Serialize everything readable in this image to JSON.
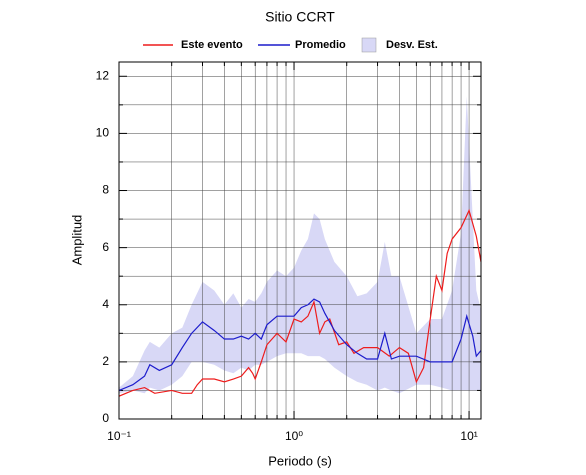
{
  "chart_data": {
    "type": "line",
    "title": "Sitio CCRT",
    "xlabel": "Periodo (s)",
    "ylabel": "Amplitud",
    "xscale": "log",
    "grid": true,
    "legend": "top",
    "xlim": [
      0.1,
      11.7
    ],
    "ylim": [
      0,
      12.5
    ],
    "xticks": [
      {
        "value": 0.1,
        "label": "10⁻¹"
      },
      {
        "value": 1,
        "label": "10⁰"
      },
      {
        "value": 10,
        "label": "10¹"
      }
    ],
    "xminor": [
      0.2,
      0.3,
      0.4,
      0.5,
      0.6,
      0.7,
      0.8,
      0.9,
      2,
      3,
      4,
      5,
      6,
      7,
      8,
      9
    ],
    "yticks": [
      0,
      2,
      4,
      6,
      8,
      10,
      12
    ],
    "yminor": [
      1,
      3,
      5,
      7,
      9,
      11
    ],
    "band": {
      "name": "Desv. Est.",
      "color": "#d8d8f6",
      "x": [
        0.1,
        0.12,
        0.14,
        0.15,
        0.17,
        0.2,
        0.23,
        0.26,
        0.3,
        0.35,
        0.4,
        0.45,
        0.5,
        0.55,
        0.6,
        0.65,
        0.7,
        0.8,
        0.9,
        1.0,
        1.1,
        1.2,
        1.3,
        1.4,
        1.5,
        1.7,
        2.0,
        2.3,
        2.6,
        3.0,
        3.3,
        3.6,
        4.0,
        5.0,
        6.0,
        7.0,
        8.0,
        9.0,
        9.7,
        10.5,
        11,
        11.7
      ],
      "upper": [
        1.1,
        1.5,
        2.4,
        2.7,
        2.5,
        3.0,
        3.2,
        4.0,
        4.8,
        4.5,
        4.0,
        4.4,
        3.9,
        4.2,
        4.1,
        4.4,
        4.8,
        5.2,
        5.0,
        5.3,
        5.9,
        6.3,
        7.2,
        7.0,
        6.3,
        5.5,
        5.0,
        4.3,
        4.4,
        4.8,
        6.2,
        5.0,
        5.0,
        3.0,
        3.5,
        3.5,
        4.5,
        6.5,
        11.3,
        7.0,
        4.5,
        3.8
      ],
      "lower": [
        0.9,
        1.0,
        0.9,
        1.1,
        1.0,
        1.2,
        1.5,
        2.0,
        2.0,
        1.9,
        1.7,
        1.6,
        1.8,
        1.7,
        1.9,
        1.9,
        2.0,
        2.2,
        2.3,
        2.3,
        2.3,
        2.2,
        2.2,
        2.2,
        2.1,
        1.8,
        1.5,
        1.3,
        1.2,
        1.0,
        1.1,
        1.0,
        0.9,
        1.2,
        1.2,
        1.1,
        1.0,
        1.0,
        1.0,
        1.0,
        1.0,
        1.0
      ]
    },
    "series": [
      {
        "name": "Este evento",
        "color": "#ee1c1c",
        "x": [
          0.1,
          0.12,
          0.14,
          0.16,
          0.2,
          0.23,
          0.26,
          0.28,
          0.3,
          0.35,
          0.4,
          0.45,
          0.5,
          0.55,
          0.58,
          0.6,
          0.65,
          0.7,
          0.8,
          0.9,
          1.0,
          1.1,
          1.2,
          1.3,
          1.4,
          1.5,
          1.6,
          1.8,
          2.0,
          2.2,
          2.5,
          3.0,
          3.5,
          4.0,
          4.5,
          5.0,
          5.5,
          6.0,
          6.5,
          7.0,
          7.5,
          8.0,
          9.0,
          10,
          11,
          11.7
        ],
        "values": [
          0.8,
          1.0,
          1.1,
          0.9,
          1.0,
          0.9,
          0.9,
          1.2,
          1.4,
          1.4,
          1.3,
          1.4,
          1.5,
          1.8,
          1.6,
          1.4,
          2.0,
          2.6,
          3.0,
          2.7,
          3.5,
          3.4,
          3.6,
          4.1,
          3.0,
          3.4,
          3.5,
          2.6,
          2.7,
          2.3,
          2.5,
          2.5,
          2.2,
          2.5,
          2.3,
          1.3,
          1.8,
          3.5,
          5.0,
          4.5,
          5.8,
          6.3,
          6.7,
          7.3,
          6.4,
          5.5
        ]
      },
      {
        "name": "Promedio",
        "color": "#1c1ccc",
        "x": [
          0.1,
          0.12,
          0.14,
          0.15,
          0.17,
          0.2,
          0.23,
          0.26,
          0.3,
          0.35,
          0.4,
          0.45,
          0.5,
          0.55,
          0.6,
          0.65,
          0.7,
          0.8,
          0.9,
          1.0,
          1.1,
          1.2,
          1.3,
          1.4,
          1.5,
          1.7,
          2.0,
          2.3,
          2.6,
          3.0,
          3.3,
          3.6,
          4.0,
          5.0,
          6.0,
          7.0,
          8.0,
          9.0,
          9.7,
          10.5,
          11,
          11.7
        ],
        "values": [
          1.0,
          1.2,
          1.5,
          1.9,
          1.7,
          1.9,
          2.5,
          3.0,
          3.4,
          3.1,
          2.8,
          2.8,
          2.9,
          2.8,
          3.0,
          2.8,
          3.3,
          3.6,
          3.6,
          3.6,
          3.9,
          4.0,
          4.2,
          4.1,
          3.7,
          3.1,
          2.6,
          2.3,
          2.1,
          2.1,
          3.0,
          2.1,
          2.2,
          2.2,
          2.0,
          2.0,
          2.0,
          2.8,
          3.6,
          2.9,
          2.2,
          2.4
        ]
      }
    ]
  }
}
